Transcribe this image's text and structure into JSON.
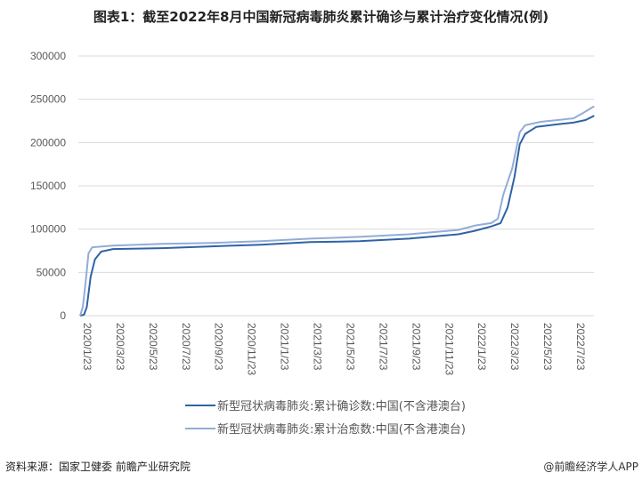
{
  "chart_data": {
    "type": "line",
    "title": "图表1：截至2022年8月中国新冠病毒肺炎累计确诊与累计治疗变化情况(例)",
    "xlabel": "",
    "ylabel": "",
    "ylim": [
      0,
      300000
    ],
    "yticks": [
      "0",
      "50000",
      "100000",
      "150000",
      "200000",
      "250000",
      "300000"
    ],
    "xticks": [
      "2020/1/23",
      "2020/3/23",
      "2020/5/23",
      "2020/7/23",
      "2020/9/23",
      "2020/11/23",
      "2021/1/23",
      "2021/3/23",
      "2021/5/23",
      "2021/7/23",
      "2021/9/23",
      "2021/11/23",
      "2022/1/23",
      "2022/3/23",
      "2022/5/23",
      "2022/7/23"
    ],
    "grid": true,
    "legend_position": "bottom",
    "series": [
      {
        "name": "新型冠状病毒肺炎:累计确诊数:中国(不含港澳台)",
        "color": "#2e63a6",
        "points": [
          [
            "2020-01-23",
            0
          ],
          [
            "2020-01-30",
            1000
          ],
          [
            "2020-02-05",
            10000
          ],
          [
            "2020-02-12",
            45000
          ],
          [
            "2020-02-20",
            65000
          ],
          [
            "2020-03-01",
            74000
          ],
          [
            "2020-03-23",
            77000
          ],
          [
            "2020-06-23",
            78000
          ],
          [
            "2020-09-23",
            80000
          ],
          [
            "2020-12-23",
            82000
          ],
          [
            "2021-03-23",
            85000
          ],
          [
            "2021-06-23",
            86000
          ],
          [
            "2021-09-23",
            89000
          ],
          [
            "2021-12-23",
            94000
          ],
          [
            "2022-01-23",
            98000
          ],
          [
            "2022-02-23",
            103000
          ],
          [
            "2022-03-10",
            107000
          ],
          [
            "2022-03-23",
            125000
          ],
          [
            "2022-04-05",
            160000
          ],
          [
            "2022-04-15",
            198000
          ],
          [
            "2022-04-25",
            210000
          ],
          [
            "2022-05-15",
            218000
          ],
          [
            "2022-06-23",
            221000
          ],
          [
            "2022-07-23",
            223000
          ],
          [
            "2022-08-15",
            226000
          ],
          [
            "2022-08-31",
            231000
          ]
        ]
      },
      {
        "name": "新型冠状病毒肺炎:累计治愈数:中国(不含港澳台)",
        "color": "#93acd6",
        "points": [
          [
            "2020-01-23",
            0
          ],
          [
            "2020-01-28",
            10000
          ],
          [
            "2020-02-03",
            40000
          ],
          [
            "2020-02-08",
            72000
          ],
          [
            "2020-02-15",
            79000
          ],
          [
            "2020-03-23",
            81000
          ],
          [
            "2020-06-23",
            83000
          ],
          [
            "2020-09-23",
            84000
          ],
          [
            "2020-12-23",
            86000
          ],
          [
            "2021-03-23",
            89000
          ],
          [
            "2021-06-23",
            91000
          ],
          [
            "2021-09-23",
            94000
          ],
          [
            "2021-12-23",
            99000
          ],
          [
            "2022-01-23",
            104000
          ],
          [
            "2022-02-23",
            107000
          ],
          [
            "2022-03-05",
            112000
          ],
          [
            "2022-03-15",
            140000
          ],
          [
            "2022-04-01",
            170000
          ],
          [
            "2022-04-15",
            212000
          ],
          [
            "2022-04-25",
            220000
          ],
          [
            "2022-05-23",
            224000
          ],
          [
            "2022-07-23",
            228000
          ],
          [
            "2022-08-10",
            234000
          ],
          [
            "2022-08-31",
            242000
          ]
        ]
      }
    ]
  },
  "footer": {
    "source": "资料来源：国家卫健委 前瞻产业研究院",
    "brand": "@前瞻经济学人APP"
  }
}
